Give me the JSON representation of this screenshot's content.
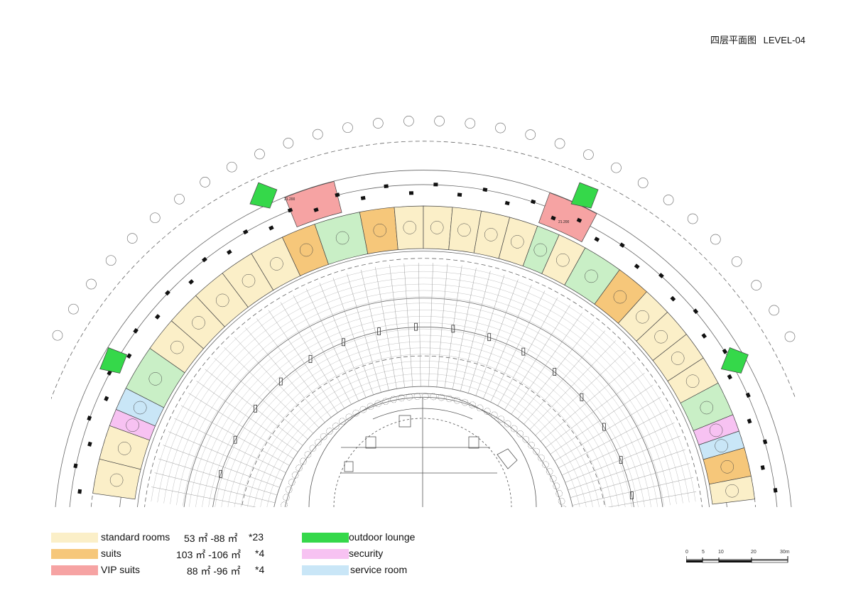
{
  "title": {
    "cn": "四层平面图",
    "en": "LEVEL-04"
  },
  "colors": {
    "standard": "#fbefc8",
    "suits": "#f6c77a",
    "vip": "#f6a3a3",
    "outdoor": "#35d84a",
    "security": "#f7c2f2",
    "service": "#c9e6f7",
    "lounge_light": "#c9efc6"
  },
  "legend": {
    "standard": {
      "label": "standard rooms",
      "area": "53 ㎡ -88 ㎡",
      "count": "*23"
    },
    "suits": {
      "label": "suits",
      "area": "103 ㎡ -106 ㎡",
      "count": "*4"
    },
    "vip": {
      "label": "VIP suits",
      "area": "88 ㎡ -96 ㎡",
      "count": "*4"
    },
    "outdoor": {
      "label": "outdoor lounge"
    },
    "security": {
      "label": "security"
    },
    "service": {
      "label": "service room"
    }
  },
  "scale": {
    "ticks": [
      "0",
      "5",
      "10",
      "20",
      "30m"
    ]
  },
  "plan_labels": {
    "level_mark_left": "21.200",
    "level_mark_right": "21.200"
  }
}
